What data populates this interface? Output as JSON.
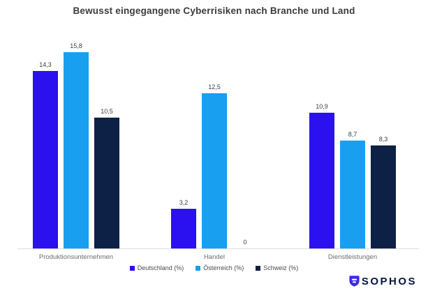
{
  "title": "Bewusst eingegangene Cyberrisiken nach Branche und Land",
  "chart_data": {
    "type": "bar",
    "title": "Bewusst eingegangene Cyberrisiken nach Branche und Land",
    "categories": [
      "Produktionsunternehmen",
      "Handel",
      "Dienstleistungen"
    ],
    "series": [
      {
        "name": "Deutschland (%)",
        "color": "#2b10f0",
        "values": [
          14.3,
          3.2,
          10.9
        ],
        "labels": [
          "14,3",
          "3,2",
          "10,9"
        ]
      },
      {
        "name": "Österreich (%)",
        "color": "#189fef",
        "values": [
          15.8,
          12.5,
          8.7
        ],
        "labels": [
          "15,8",
          "12,5",
          "8,7"
        ]
      },
      {
        "name": "Schweiz (%)",
        "color": "#0d2046",
        "values": [
          10.5,
          0,
          8.3
        ],
        "labels": [
          "10,5",
          "0",
          "8,3"
        ]
      }
    ],
    "xlabel": "",
    "ylabel": "",
    "ylim": [
      0,
      16.8
    ],
    "grid": false,
    "y_axis_visible": false,
    "legend_position": "bottom",
    "value_labels_shown": true,
    "decimal_separator": ","
  },
  "branding": {
    "logo_text": "SOPHOS",
    "logo_icon": "sophos-shield-icon",
    "logo_text_color": "#041540",
    "logo_icon_color": "#3b2be9"
  },
  "style_colors": {
    "title_text": "#3b3b3b",
    "value_label_text": "#3d3d3d",
    "category_label_text": "#6e6e6e",
    "legend_text": "#4a4a4a",
    "axis_line": "#dcdcdc",
    "background": "#ffffff"
  }
}
